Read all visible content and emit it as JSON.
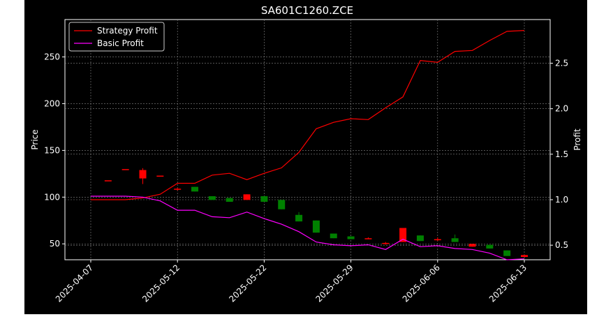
{
  "chart_data": {
    "type": "candlestick+line",
    "title": "SA601C1260.ZCE",
    "ylabel_left": "Price",
    "ylabel_right": "Profit",
    "xlabel": "",
    "x_tick_labels": [
      "2025-04-07",
      "2025-05-12",
      "2025-05-22",
      "2025-05-29",
      "2025-06-06",
      "2025-06-13"
    ],
    "x_tick_indices": [
      0,
      5,
      10,
      15,
      20,
      25
    ],
    "ylim_left": [
      33,
      290
    ],
    "ylim_right": [
      0.34,
      2.98
    ],
    "yticks_left": [
      50,
      100,
      150,
      200,
      250
    ],
    "yticks_right": [
      0.5,
      1.0,
      1.5,
      2.0,
      2.5
    ],
    "grid": true,
    "legend_position": "top-left",
    "colors": {
      "background": "#000000",
      "figure": "#ffffff",
      "strategy": "#ff0000",
      "basic": "#ff00ff",
      "up": "#ff0000",
      "down": "#008000",
      "grid": "#888888",
      "text": "#ffffff"
    },
    "series": [
      {
        "name": "Strategy Profit",
        "axis": "right",
        "values": [
          1.0,
          1.0,
          1.0,
          1.02,
          1.06,
          1.18,
          1.18,
          1.27,
          1.29,
          1.22,
          1.29,
          1.35,
          1.52,
          1.78,
          1.85,
          1.89,
          1.88,
          2.01,
          2.13,
          2.53,
          2.51,
          2.63,
          2.64,
          2.75,
          2.85,
          2.86
        ]
      },
      {
        "name": "Basic Profit",
        "axis": "left",
        "values": [
          101,
          101,
          101,
          100,
          96,
          86,
          86,
          79,
          78,
          84,
          77,
          71,
          63,
          52,
          49,
          48,
          49,
          44,
          55,
          47,
          48,
          45,
          44,
          40,
          33,
          34
        ]
      }
    ],
    "candles": [
      {
        "i": 1,
        "open": 118,
        "close": 118,
        "high": 118,
        "low": 118
      },
      {
        "i": 2,
        "open": 130,
        "close": 130,
        "high": 130,
        "low": 130
      },
      {
        "i": 3,
        "open": 120,
        "close": 129,
        "high": 131,
        "low": 114
      },
      {
        "i": 4,
        "open": 123,
        "close": 123,
        "high": 123,
        "low": 123
      },
      {
        "i": 5,
        "open": 108,
        "close": 109,
        "high": 110,
        "low": 107
      },
      {
        "i": 6,
        "open": 111,
        "close": 106,
        "high": 111,
        "low": 106
      },
      {
        "i": 7,
        "open": 101,
        "close": 97,
        "high": 101,
        "low": 97
      },
      {
        "i": 8,
        "open": 99,
        "close": 95,
        "high": 99,
        "low": 95
      },
      {
        "i": 9,
        "open": 97,
        "close": 103,
        "high": 103,
        "low": 97
      },
      {
        "i": 10,
        "open": 101,
        "close": 95,
        "high": 101,
        "low": 95
      },
      {
        "i": 11,
        "open": 97,
        "close": 87,
        "high": 97,
        "low": 87
      },
      {
        "i": 12,
        "open": 81,
        "close": 74,
        "high": 84,
        "low": 74
      },
      {
        "i": 13,
        "open": 75,
        "close": 62,
        "high": 75,
        "low": 62
      },
      {
        "i": 14,
        "open": 61,
        "close": 56,
        "high": 61,
        "low": 56
      },
      {
        "i": 15,
        "open": 58,
        "close": 55,
        "high": 58,
        "low": 55
      },
      {
        "i": 16,
        "open": 56,
        "close": 56,
        "high": 57,
        "low": 55
      },
      {
        "i": 17,
        "open": 50,
        "close": 51,
        "high": 52,
        "low": 49
      },
      {
        "i": 18,
        "open": 52,
        "close": 67,
        "high": 67,
        "low": 52
      },
      {
        "i": 19,
        "open": 59,
        "close": 53,
        "high": 59,
        "low": 53
      },
      {
        "i": 20,
        "open": 55,
        "close": 55,
        "high": 57,
        "low": 53
      },
      {
        "i": 21,
        "open": 56,
        "close": 52,
        "high": 60,
        "low": 52
      },
      {
        "i": 22,
        "open": 47,
        "close": 50,
        "high": 50,
        "low": 47
      },
      {
        "i": 23,
        "open": 49,
        "close": 45,
        "high": 49,
        "low": 45
      },
      {
        "i": 24,
        "open": 43,
        "close": 37,
        "high": 43,
        "low": 37
      },
      {
        "i": 25,
        "open": 36,
        "close": 38,
        "high": 38,
        "low": 36
      }
    ]
  }
}
